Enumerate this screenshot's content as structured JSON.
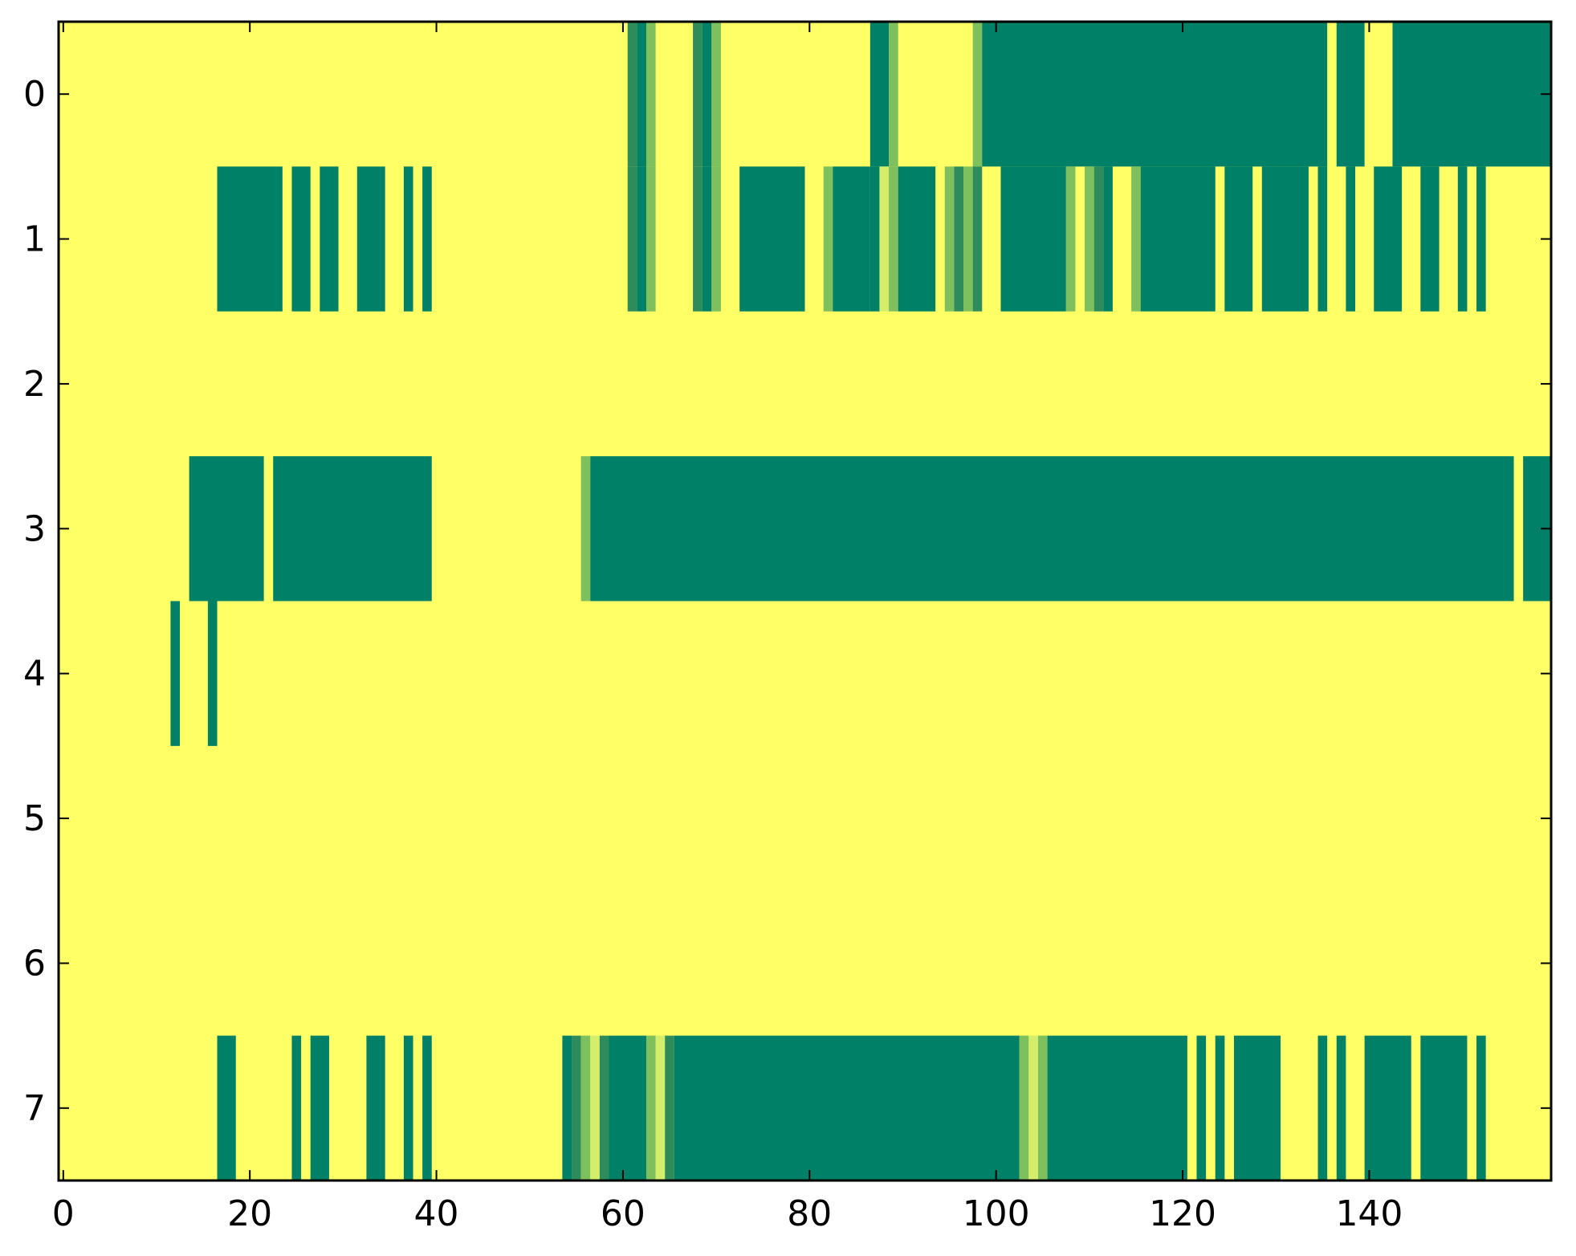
{
  "chart_data": {
    "type": "heatmap",
    "title": "",
    "xlabel": "",
    "ylabel": "",
    "xlim": [
      -0.5,
      159.5
    ],
    "ylim": [
      -0.5,
      7.5
    ],
    "y_inverted": true,
    "grid": false,
    "legend": "none",
    "x_ticks": [
      {
        "value": 0,
        "label": "0"
      },
      {
        "value": 20,
        "label": "20"
      },
      {
        "value": 40,
        "label": "40"
      },
      {
        "value": 60,
        "label": "60"
      },
      {
        "value": 80,
        "label": "80"
      },
      {
        "value": 100,
        "label": "100"
      },
      {
        "value": 120,
        "label": "120"
      },
      {
        "value": 140,
        "label": "140"
      }
    ],
    "y_ticks": [
      {
        "value": 0,
        "label": "0"
      },
      {
        "value": 1,
        "label": "1"
      },
      {
        "value": 2,
        "label": "2"
      },
      {
        "value": 3,
        "label": "3"
      },
      {
        "value": 4,
        "label": "4"
      },
      {
        "value": 5,
        "label": "5"
      },
      {
        "value": 6,
        "label": "6"
      },
      {
        "value": 7,
        "label": "7"
      }
    ],
    "colors": {
      "background": "#ffff66",
      "level_3": "#008066",
      "level_2": "#2e8c5c",
      "level_1": "#7ebf5e",
      "level_0": "#d4ed6a"
    },
    "rows": [
      {
        "row": 0,
        "segments": [
          {
            "x0": 61,
            "x1": 62,
            "level": 2
          },
          {
            "x0": 62,
            "x1": 63,
            "level": 3
          },
          {
            "x0": 63,
            "x1": 64,
            "level": 1
          },
          {
            "x0": 68,
            "x1": 69,
            "level": 2
          },
          {
            "x0": 69,
            "x1": 70,
            "level": 3
          },
          {
            "x0": 70,
            "x1": 71,
            "level": 1
          },
          {
            "x0": 87,
            "x1": 89,
            "level": 3
          },
          {
            "x0": 89,
            "x1": 90,
            "level": 1
          },
          {
            "x0": 98,
            "x1": 99,
            "level": 1
          },
          {
            "x0": 99,
            "x1": 136,
            "level": 3
          },
          {
            "x0": 137,
            "x1": 140,
            "level": 3
          },
          {
            "x0": 143,
            "x1": 160,
            "level": 3
          }
        ]
      },
      {
        "row": 1,
        "segments": [
          {
            "x0": 17,
            "x1": 24,
            "level": 3
          },
          {
            "x0": 25,
            "x1": 27,
            "level": 3
          },
          {
            "x0": 28,
            "x1": 30,
            "level": 3
          },
          {
            "x0": 32,
            "x1": 35,
            "level": 3
          },
          {
            "x0": 37,
            "x1": 38,
            "level": 3
          },
          {
            "x0": 39,
            "x1": 40,
            "level": 3
          },
          {
            "x0": 61,
            "x1": 62,
            "level": 2
          },
          {
            "x0": 62,
            "x1": 63,
            "level": 3
          },
          {
            "x0": 63,
            "x1": 64,
            "level": 1
          },
          {
            "x0": 68,
            "x1": 69,
            "level": 2
          },
          {
            "x0": 69,
            "x1": 70,
            "level": 3
          },
          {
            "x0": 70,
            "x1": 71,
            "level": 1
          },
          {
            "x0": 73,
            "x1": 80,
            "level": 3
          },
          {
            "x0": 82,
            "x1": 83,
            "level": 1
          },
          {
            "x0": 83,
            "x1": 87,
            "level": 3
          },
          {
            "x0": 87,
            "x1": 88,
            "level": 3
          },
          {
            "x0": 88,
            "x1": 89,
            "level": 0
          },
          {
            "x0": 89,
            "x1": 90,
            "level": 1
          },
          {
            "x0": 90,
            "x1": 94,
            "level": 3
          },
          {
            "x0": 95,
            "x1": 96,
            "level": 1
          },
          {
            "x0": 96,
            "x1": 97,
            "level": 2
          },
          {
            "x0": 97,
            "x1": 98,
            "level": 1
          },
          {
            "x0": 98,
            "x1": 99,
            "level": 2
          },
          {
            "x0": 101,
            "x1": 108,
            "level": 3
          },
          {
            "x0": 108,
            "x1": 109,
            "level": 1
          },
          {
            "x0": 110,
            "x1": 111,
            "level": 1
          },
          {
            "x0": 111,
            "x1": 112,
            "level": 2
          },
          {
            "x0": 112,
            "x1": 113,
            "level": 3
          },
          {
            "x0": 115,
            "x1": 116,
            "level": 1
          },
          {
            "x0": 116,
            "x1": 124,
            "level": 3
          },
          {
            "x0": 125,
            "x1": 128,
            "level": 3
          },
          {
            "x0": 129,
            "x1": 134,
            "level": 3
          },
          {
            "x0": 135,
            "x1": 136,
            "level": 3
          },
          {
            "x0": 138,
            "x1": 139,
            "level": 3
          },
          {
            "x0": 141,
            "x1": 144,
            "level": 3
          },
          {
            "x0": 146,
            "x1": 148,
            "level": 3
          },
          {
            "x0": 150,
            "x1": 151,
            "level": 3
          },
          {
            "x0": 152,
            "x1": 153,
            "level": 3
          }
        ]
      },
      {
        "row": 2,
        "segments": []
      },
      {
        "row": 3,
        "segments": [
          {
            "x0": 14,
            "x1": 22,
            "level": 3
          },
          {
            "x0": 23,
            "x1": 40,
            "level": 3
          },
          {
            "x0": 56,
            "x1": 57,
            "level": 1
          },
          {
            "x0": 57,
            "x1": 156,
            "level": 3
          },
          {
            "x0": 157,
            "x1": 160,
            "level": 3
          }
        ]
      },
      {
        "row": 4,
        "segments": [
          {
            "x0": 12,
            "x1": 13,
            "level": 3
          },
          {
            "x0": 16,
            "x1": 17,
            "level": 3
          }
        ]
      },
      {
        "row": 5,
        "segments": []
      },
      {
        "row": 6,
        "segments": []
      },
      {
        "row": 7,
        "segments": [
          {
            "x0": 17,
            "x1": 19,
            "level": 3
          },
          {
            "x0": 25,
            "x1": 26,
            "level": 3
          },
          {
            "x0": 27,
            "x1": 29,
            "level": 3
          },
          {
            "x0": 33,
            "x1": 35,
            "level": 3
          },
          {
            "x0": 37,
            "x1": 38,
            "level": 3
          },
          {
            "x0": 39,
            "x1": 40,
            "level": 3
          },
          {
            "x0": 54,
            "x1": 55,
            "level": 3
          },
          {
            "x0": 55,
            "x1": 56,
            "level": 2
          },
          {
            "x0": 56,
            "x1": 57,
            "level": 1
          },
          {
            "x0": 57,
            "x1": 58,
            "level": 0
          },
          {
            "x0": 58,
            "x1": 59,
            "level": 2
          },
          {
            "x0": 59,
            "x1": 63,
            "level": 3
          },
          {
            "x0": 63,
            "x1": 64,
            "level": 1
          },
          {
            "x0": 64,
            "x1": 65,
            "level": 0
          },
          {
            "x0": 65,
            "x1": 66,
            "level": 2
          },
          {
            "x0": 66,
            "x1": 103,
            "level": 3
          },
          {
            "x0": 103,
            "x1": 104,
            "level": 1
          },
          {
            "x0": 104,
            "x1": 105,
            "level": 0
          },
          {
            "x0": 105,
            "x1": 106,
            "level": 1
          },
          {
            "x0": 106,
            "x1": 121,
            "level": 3
          },
          {
            "x0": 122,
            "x1": 123,
            "level": 3
          },
          {
            "x0": 124,
            "x1": 125,
            "level": 3
          },
          {
            "x0": 126,
            "x1": 131,
            "level": 3
          },
          {
            "x0": 135,
            "x1": 136,
            "level": 3
          },
          {
            "x0": 137,
            "x1": 138,
            "level": 3
          },
          {
            "x0": 140,
            "x1": 145,
            "level": 3
          },
          {
            "x0": 146,
            "x1": 151,
            "level": 3
          },
          {
            "x0": 152,
            "x1": 153,
            "level": 3
          }
        ]
      }
    ]
  }
}
